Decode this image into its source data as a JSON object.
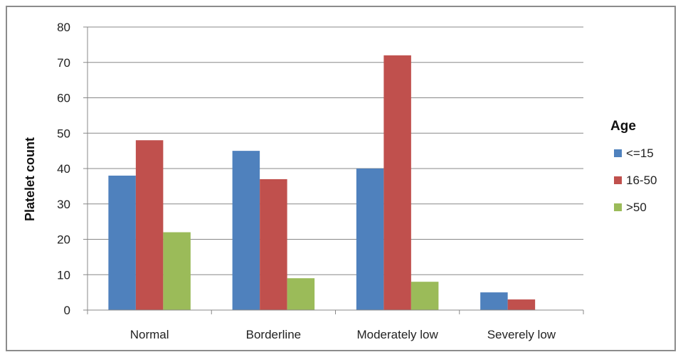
{
  "chart_data": {
    "type": "bar",
    "title": "",
    "xlabel": "",
    "ylabel": "Platelet count",
    "ylim": [
      0,
      80
    ],
    "yticks": [
      0,
      10,
      20,
      30,
      40,
      50,
      60,
      70,
      80
    ],
    "grid": true,
    "legend_position": "right",
    "legend_title": "Age",
    "categories": [
      "Normal",
      "Borderline",
      "Moderately low",
      "Severely low"
    ],
    "series": [
      {
        "name": "<=15",
        "color": "#4f81bd",
        "values": [
          38,
          45,
          40,
          5
        ]
      },
      {
        "name": "16-50",
        "color": "#c0504d",
        "values": [
          48,
          37,
          72,
          3
        ]
      },
      {
        "name": ">50",
        "color": "#9bbb59",
        "values": [
          22,
          9,
          8,
          0
        ]
      }
    ]
  }
}
